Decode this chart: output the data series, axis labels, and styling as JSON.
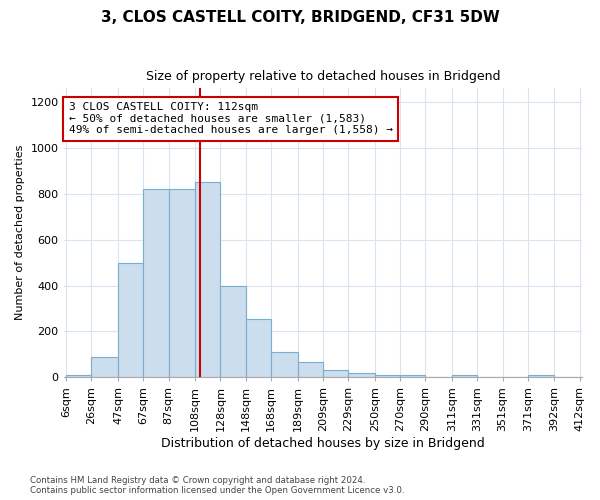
{
  "title": "3, CLOS CASTELL COITY, BRIDGEND, CF31 5DW",
  "subtitle": "Size of property relative to detached houses in Bridgend",
  "xlabel": "Distribution of detached houses by size in Bridgend",
  "ylabel": "Number of detached properties",
  "footer_line1": "Contains HM Land Registry data © Crown copyright and database right 2024.",
  "footer_line2": "Contains public sector information licensed under the Open Government Licence v3.0.",
  "bar_left_edges": [
    6,
    26,
    47,
    67,
    87,
    108,
    128,
    148,
    168,
    189,
    209,
    229,
    250,
    270,
    290,
    311,
    331,
    351,
    371,
    392
  ],
  "bar_widths": [
    20,
    21,
    20,
    20,
    21,
    20,
    20,
    20,
    21,
    20,
    20,
    21,
    20,
    20,
    21,
    20,
    20,
    20,
    21,
    20
  ],
  "bar_heights": [
    10,
    90,
    500,
    820,
    820,
    850,
    400,
    255,
    110,
    65,
    30,
    20,
    10,
    10,
    0,
    10,
    0,
    0,
    10,
    0
  ],
  "bar_color": "#ccdded",
  "bar_edge_color": "#7aaed0",
  "property_size": 112,
  "vline_color": "#cc0000",
  "annotation_text": "3 CLOS CASTELL COITY: 112sqm\n← 50% of detached houses are smaller (1,583)\n49% of semi-detached houses are larger (1,558) →",
  "annotation_box_color": "#ffffff",
  "annotation_box_edge": "#cc0000",
  "ylim": [
    0,
    1260
  ],
  "yticks": [
    0,
    200,
    400,
    600,
    800,
    1000,
    1200
  ],
  "tick_labels": [
    "6sqm",
    "26sqm",
    "47sqm",
    "67sqm",
    "87sqm",
    "108sqm",
    "128sqm",
    "148sqm",
    "168sqm",
    "189sqm",
    "209sqm",
    "229sqm",
    "250sqm",
    "270sqm",
    "290sqm",
    "311sqm",
    "331sqm",
    "351sqm",
    "371sqm",
    "392sqm",
    "412sqm"
  ],
  "background_color": "#ffffff",
  "grid_color": "#d8e4f0",
  "title_fontsize": 11,
  "subtitle_fontsize": 9,
  "ylabel_fontsize": 8,
  "xlabel_fontsize": 9,
  "tick_fontsize": 8,
  "annotation_fontsize": 8
}
